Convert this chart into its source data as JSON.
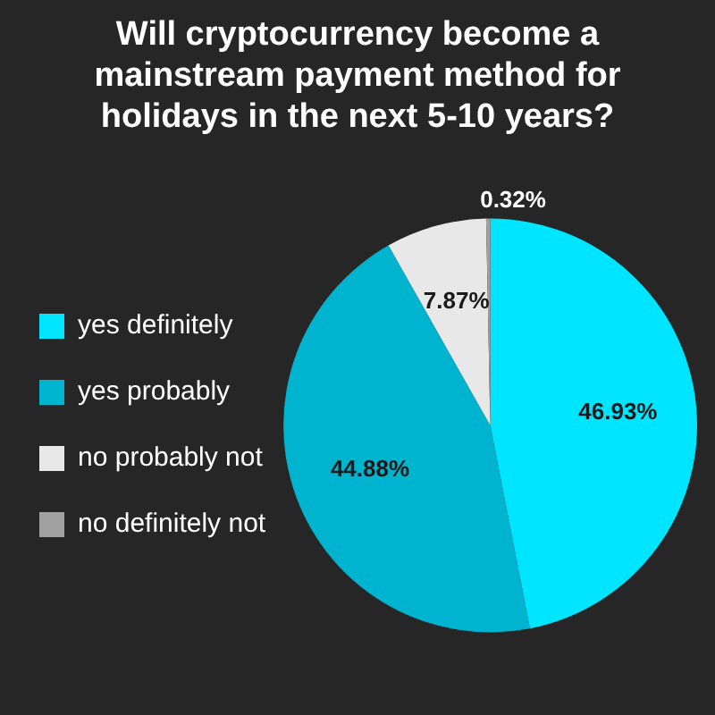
{
  "chart_data": {
    "type": "pie",
    "title": "Will cryptocurrency become a mainstream payment method for holidays in the next 5-10 years?",
    "categories": [
      "yes definitely",
      "yes probably",
      "no probably not",
      "no definitely not"
    ],
    "values": [
      46.93,
      44.88,
      7.87,
      0.32
    ],
    "colors": [
      "#00e5ff",
      "#00b4d0",
      "#e8e8e8",
      "#a0a0a0"
    ],
    "value_labels": [
      "46.93%",
      "44.88%",
      "7.87%",
      "0.32%"
    ],
    "legend": "left"
  }
}
